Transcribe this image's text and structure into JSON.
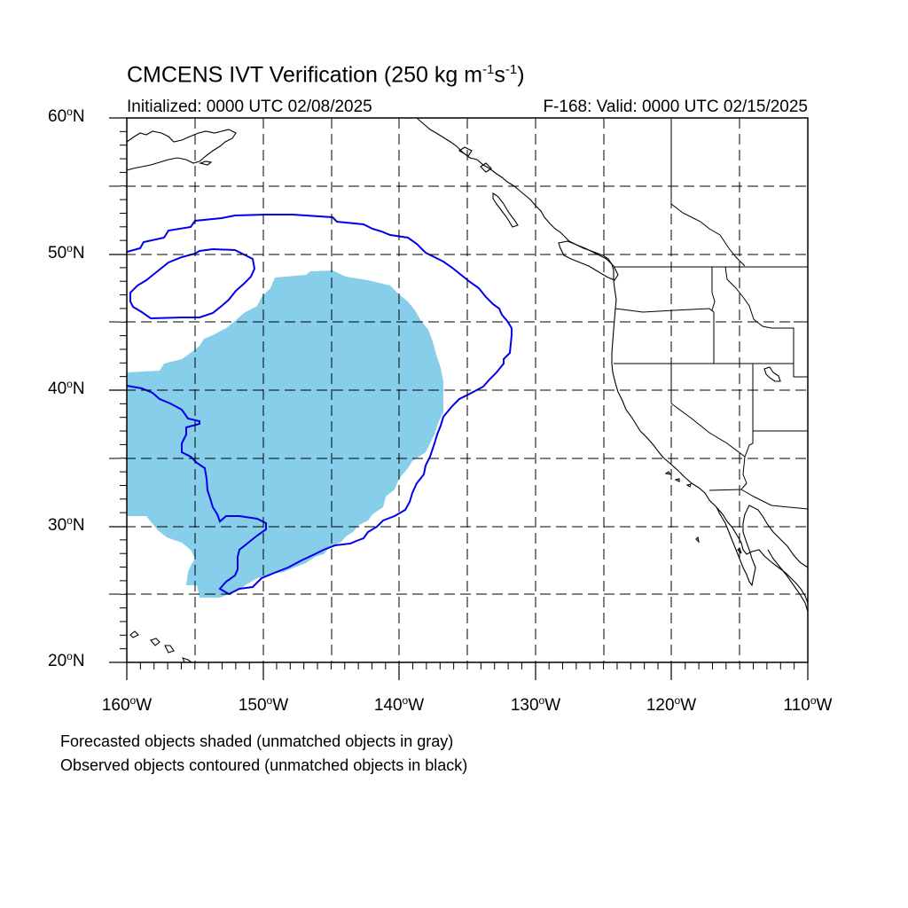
{
  "title": {
    "main": "CMCENS IVT Verification (250 kg m",
    "sup1": "-1",
    "mid": "s",
    "sup2": "-1",
    "end": ")"
  },
  "subtitle_left": "Initialized: 0000 UTC 02/08/2025",
  "subtitle_right": "F-168: Valid: 0000 UTC 02/15/2025",
  "lat_labels": [
    {
      "num": "60",
      "suffix": "N"
    },
    {
      "num": "50",
      "suffix": "N"
    },
    {
      "num": "40",
      "suffix": "N"
    },
    {
      "num": "30",
      "suffix": "N"
    },
    {
      "num": "20",
      "suffix": "N"
    }
  ],
  "lon_labels": [
    {
      "num": "160",
      "suffix": "W"
    },
    {
      "num": "150",
      "suffix": "W"
    },
    {
      "num": "140",
      "suffix": "W"
    },
    {
      "num": "130",
      "suffix": "W"
    },
    {
      "num": "120",
      "suffix": "W"
    },
    {
      "num": "110",
      "suffix": "W"
    }
  ],
  "legend_notes": [
    "Forecasted objects shaded (unmatched objects in gray)",
    "Observed objects contoured (unmatched objects in black)"
  ],
  "map_extent": {
    "lon_min": -160,
    "lon_max": -110,
    "lat_min": 20,
    "lat_max": 60
  },
  "colors": {
    "forecast_fill": "#87ceeb",
    "observed_contour": "#0000ee",
    "coastline": "#000000",
    "grid": "#000000"
  }
}
